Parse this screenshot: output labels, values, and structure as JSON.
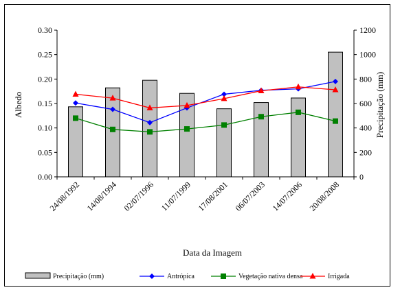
{
  "chart_data": {
    "type": "bar+line",
    "xlabel": "Data da Imagem",
    "ylabel_left": "Albedo",
    "ylabel_right": "Precipitação (mm)",
    "categories": [
      "24/08/1992",
      "14/08/1994",
      "02/07/1996",
      "11/07/1999",
      "17/08/2001",
      "06/07/2003",
      "14/07/2006",
      "20/08/2008"
    ],
    "ylim_left": [
      0,
      0.3
    ],
    "yticks_left": [
      "0.00",
      "0.05",
      "0.10",
      "0.15",
      "0.20",
      "0.25",
      "0.30"
    ],
    "ylim_right": [
      0,
      1200
    ],
    "yticks_right": [
      "0",
      "200",
      "400",
      "600",
      "800",
      "1000",
      "1200"
    ],
    "grid": false,
    "legend_position": "bottom",
    "bars": {
      "name": "Precipitação (mm)",
      "axis": "right",
      "color": "#c0c0c0",
      "values": [
        573,
        728,
        790,
        683,
        557,
        608,
        645,
        1020
      ]
    },
    "series": [
      {
        "name": "Antrópica",
        "axis": "left",
        "color": "#0000ff",
        "marker": "diamond",
        "values": [
          0.151,
          0.138,
          0.111,
          0.141,
          0.169,
          0.177,
          0.18,
          0.195
        ]
      },
      {
        "name": "Vegetação  nativa densa",
        "axis": "left",
        "color": "#008000",
        "marker": "square",
        "values": [
          0.12,
          0.097,
          0.092,
          0.098,
          0.106,
          0.123,
          0.132,
          0.114
        ]
      },
      {
        "name": "Irrigada",
        "axis": "left",
        "color": "#ff0000",
        "marker": "triangle",
        "values": [
          0.169,
          0.161,
          0.141,
          0.146,
          0.16,
          0.176,
          0.184,
          0.178
        ]
      }
    ]
  }
}
